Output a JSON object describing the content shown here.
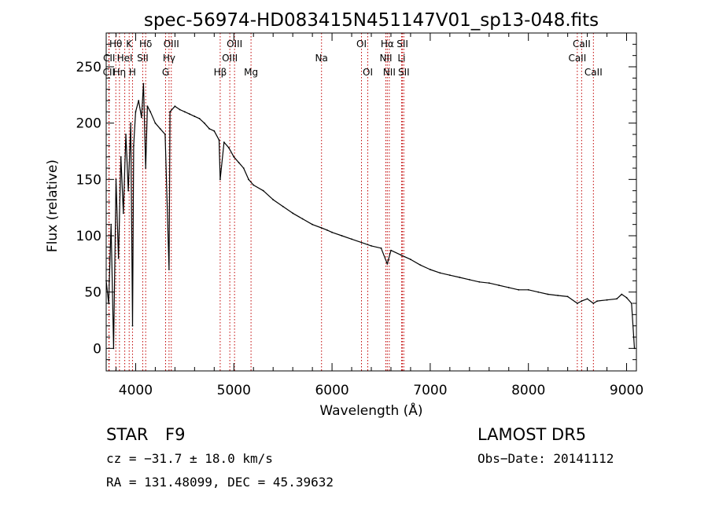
{
  "chart_data": {
    "type": "line",
    "title": "spec-56974-HD083415N451147V01_sp13-048.fits",
    "xlabel": "Wavelength (Å)",
    "ylabel": "Flux (relative)",
    "xlim": [
      3700,
      9100
    ],
    "ylim": [
      -20,
      280
    ],
    "x_ticks": [
      4000,
      5000,
      6000,
      7000,
      8000,
      9000
    ],
    "y_ticks": [
      0,
      50,
      100,
      150,
      200,
      250
    ],
    "grid": false,
    "series": [
      {
        "x": [
          3700,
          3725,
          3750,
          3775,
          3800,
          3825,
          3850,
          3875,
          3900,
          3925,
          3950,
          3968,
          3980,
          4000,
          4030,
          4060,
          4080,
          4102,
          4120,
          4150,
          4200,
          4250,
          4300,
          4340,
          4350,
          4400,
          4450,
          4500,
          4550,
          4600,
          4650,
          4700,
          4750,
          4800,
          4850,
          4861,
          4900,
          4950,
          5000,
          5050,
          5100,
          5150,
          5200,
          5300,
          5400,
          5500,
          5600,
          5700,
          5800,
          5893,
          5950,
          6000,
          6100,
          6200,
          6300,
          6400,
          6500,
          6563,
          6600,
          6700,
          6800,
          6900,
          7000,
          7100,
          7200,
          7300,
          7400,
          7500,
          7600,
          7700,
          7800,
          7900,
          8000,
          8100,
          8200,
          8300,
          8400,
          8498,
          8542,
          8600,
          8662,
          8700,
          8800,
          8900,
          8950,
          9000,
          9050,
          9080
        ],
        "y": [
          60,
          40,
          110,
          0,
          150,
          80,
          170,
          120,
          190,
          140,
          200,
          20,
          180,
          210,
          220,
          205,
          235,
          160,
          215,
          210,
          200,
          195,
          190,
          70,
          210,
          215,
          212,
          210,
          208,
          206,
          204,
          200,
          195,
          193,
          185,
          150,
          183,
          178,
          170,
          165,
          160,
          150,
          145,
          140,
          132,
          126,
          120,
          115,
          110,
          107,
          105,
          103,
          100,
          97,
          94,
          91,
          89,
          75,
          87,
          83,
          79,
          74,
          70,
          67,
          65,
          63,
          61,
          59,
          58,
          56,
          54,
          52,
          52,
          50,
          48,
          47,
          46,
          40,
          42,
          44,
          40,
          42,
          43,
          44,
          48,
          45,
          40,
          0
        ]
      }
    ],
    "line_markers": [
      {
        "label": "CII",
        "x": 3727,
        "row": 3
      },
      {
        "label": "CII",
        "x": 3730,
        "row": 2
      },
      {
        "label": "Hθ",
        "x": 3798,
        "row": 1
      },
      {
        "label": "Hη",
        "x": 3835,
        "row": 3
      },
      {
        "label": "HeI",
        "x": 3889,
        "row": 2
      },
      {
        "label": "K",
        "x": 3934,
        "row": 1
      },
      {
        "label": "H",
        "x": 3968,
        "row": 3
      },
      {
        "label": "SII",
        "x": 4072,
        "row": 2
      },
      {
        "label": "Hδ",
        "x": 4102,
        "row": 1
      },
      {
        "label": "OIII",
        "x": 4363,
        "row": 1
      },
      {
        "label": "Hγ",
        "x": 4340,
        "row": 2
      },
      {
        "label": "G",
        "x": 4305,
        "row": 3
      },
      {
        "label": "Hβ",
        "x": 4861,
        "row": 3
      },
      {
        "label": "OIII",
        "x": 4959,
        "row": 2
      },
      {
        "label": "OIII",
        "x": 5007,
        "row": 1
      },
      {
        "label": "Mg",
        "x": 5175,
        "row": 3
      },
      {
        "label": "Na",
        "x": 5893,
        "row": 2
      },
      {
        "label": "OI",
        "x": 6300,
        "row": 1
      },
      {
        "label": "OI",
        "x": 6364,
        "row": 3
      },
      {
        "label": "NII",
        "x": 6548,
        "row": 2
      },
      {
        "label": "Hα",
        "x": 6563,
        "row": 1
      },
      {
        "label": "NII",
        "x": 6583,
        "row": 3
      },
      {
        "label": "Li",
        "x": 6708,
        "row": 2
      },
      {
        "label": "SII",
        "x": 6717,
        "row": 1
      },
      {
        "label": "SII",
        "x": 6731,
        "row": 3
      },
      {
        "label": "CaII",
        "x": 8498,
        "row": 2
      },
      {
        "label": "CaII",
        "x": 8542,
        "row": 1
      },
      {
        "label": "CaII",
        "x": 8662,
        "row": 3
      }
    ],
    "marker_color": "#c00000"
  },
  "info": {
    "object_class": "STAR",
    "subclass": "F9",
    "survey": "LAMOST DR5",
    "cz": "cz = −31.7 ± 18.0 km/s",
    "obs_date": "Obs−Date: 20141112",
    "coords": "RA = 131.48099, DEC =  45.39632"
  }
}
